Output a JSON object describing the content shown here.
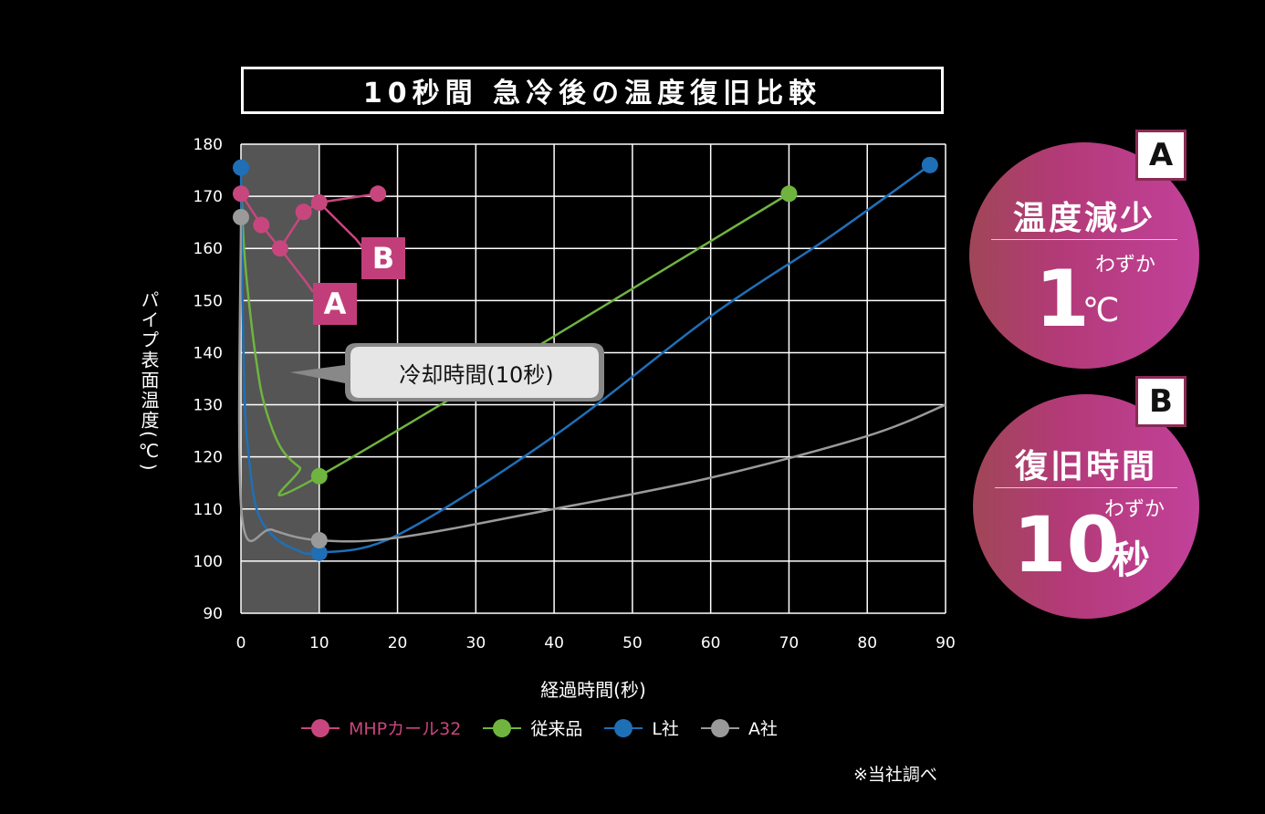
{
  "title": "10秒間 急冷後の温度復旧比較",
  "note": "※当社調べ",
  "callout": "冷却時間(10秒)",
  "flags": {
    "a": "A",
    "b": "B"
  },
  "badge_a": {
    "tag": "A",
    "head": "温度減少",
    "sub": "わずか",
    "big": "1",
    "unit": "℃"
  },
  "badge_b": {
    "tag": "B",
    "head": "復旧時間",
    "sub": "わずか",
    "big": "10",
    "unit": "秒"
  },
  "colors": {
    "mhp": "#c8467e",
    "conventional": "#6fb43f",
    "l_company": "#1f6fb7",
    "a_company": "#9a9a9a",
    "cooling_band": "#555555"
  },
  "chart_data": {
    "type": "line",
    "xlabel": "経過時間(秒)",
    "ylabel": "パイプ表面温度(℃)",
    "xlim": [
      0,
      90
    ],
    "ylim": [
      90,
      180
    ],
    "x_ticks": [
      "0",
      "10",
      "20",
      "30",
      "40",
      "50",
      "60",
      "70",
      "80",
      "90"
    ],
    "y_ticks": [
      "180",
      "170",
      "160",
      "150",
      "140",
      "130",
      "120",
      "110",
      "100",
      "90"
    ],
    "grid": true,
    "legend_position": "bottom",
    "shaded_region": {
      "x_from": 0,
      "x_to": 10
    },
    "series": [
      {
        "name": "MHPカール32",
        "color": "#c8467e",
        "points": [
          [
            0,
            170.5
          ],
          [
            2.6,
            164.5
          ],
          [
            5,
            160
          ],
          [
            8,
            167
          ],
          [
            10,
            168.8
          ],
          [
            17.5,
            170.5
          ]
        ],
        "markers": [
          0,
          1,
          2,
          3,
          4,
          5
        ]
      },
      {
        "name": "従来品",
        "color": "#6fb43f",
        "points": [
          [
            0,
            172
          ],
          [
            0.4,
            160
          ],
          [
            1,
            150
          ],
          [
            2,
            138
          ],
          [
            3,
            130
          ],
          [
            5,
            122
          ],
          [
            7.5,
            118
          ],
          [
            10,
            116.3
          ],
          [
            70,
            170.5
          ]
        ],
        "markers": [
          7,
          8
        ]
      },
      {
        "name": "L社",
        "color": "#1f6fb7",
        "points": [
          [
            0,
            175.5
          ],
          [
            0.2,
            150
          ],
          [
            0.5,
            130
          ],
          [
            1,
            120
          ],
          [
            2,
            110
          ],
          [
            4,
            105
          ],
          [
            7,
            102.2
          ],
          [
            10,
            101.6
          ],
          [
            20,
            105
          ],
          [
            40,
            124
          ],
          [
            60,
            147
          ],
          [
            75,
            162
          ],
          [
            88,
            176
          ]
        ],
        "markers": [
          0,
          7,
          12
        ]
      },
      {
        "name": "A社",
        "color": "#9a9a9a",
        "points": [
          [
            0,
            166
          ],
          [
            0.1,
            109
          ],
          [
            4,
            106
          ],
          [
            10,
            104
          ],
          [
            20,
            104.5
          ],
          [
            40,
            110
          ],
          [
            60,
            116
          ],
          [
            80,
            124
          ],
          [
            90,
            130
          ]
        ],
        "markers": [
          0,
          3
        ]
      }
    ]
  }
}
